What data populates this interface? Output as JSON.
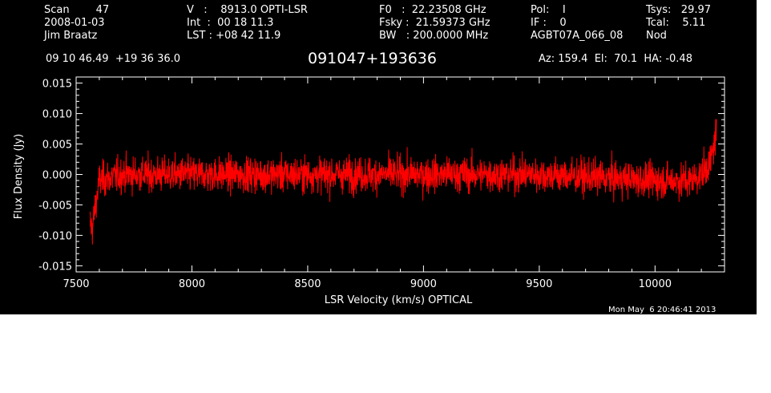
{
  "header": {
    "col1": [
      "Scan        47",
      "2008-01-03",
      "Jim Braatz"
    ],
    "col2": [
      "V   :    8913.0 OPTI-LSR",
      "Int  :  00 18 11.3",
      "LST : +08 42 11.9"
    ],
    "col3": [
      "F0   :  22.23508 GHz",
      "Fsky :  21.59373 GHz",
      "BW   : 200.0000 MHz"
    ],
    "col4": [
      "Pol:    I",
      "IF :    0",
      "AGBT07A_066_08"
    ],
    "col5": [
      "Tsys:   29.97",
      "Tcal:    5.11",
      "Nod"
    ],
    "coords": "09 10 46.49  +19 36 36.0",
    "source": "091047+193636",
    "pointing": "Az: 159.4  El:  70.1  HA: -0.48",
    "timestamp": "Mon May  6 20:46:41 2013"
  },
  "chart_data": {
    "type": "line",
    "xlabel": "LSR Velocity (km/s) OPTICAL",
    "ylabel": "Flux Density (Jy)",
    "xlim": [
      7500,
      10300
    ],
    "ylim": [
      -0.016,
      0.016
    ],
    "x_ticks": [
      7500,
      8000,
      8500,
      9000,
      9500,
      10000
    ],
    "x_tick_labels": [
      "7500",
      "8000",
      "8500",
      "9000",
      "9500",
      "10000"
    ],
    "y_ticks": [
      -0.015,
      -0.01,
      -0.005,
      0.0,
      0.005,
      0.01,
      0.015
    ],
    "y_tick_labels": [
      "-0.015",
      "-0.010",
      "-0.005",
      "0.000",
      "0.005",
      "0.010",
      "0.015"
    ],
    "series": [
      {
        "color": "#ff0000",
        "x_range": [
          7560,
          10265
        ],
        "baseline": [
          [
            7560,
            -0.008
          ],
          [
            7570,
            -0.009
          ],
          [
            7580,
            -0.006
          ],
          [
            7600,
            -0.001
          ],
          [
            7700,
            0.0
          ],
          [
            8000,
            0.0
          ],
          [
            9000,
            0.0
          ],
          [
            9500,
            0.0
          ],
          [
            10000,
            -0.001
          ],
          [
            10150,
            -0.001
          ],
          [
            10200,
            0.0
          ],
          [
            10240,
            0.002
          ],
          [
            10255,
            0.005
          ],
          [
            10265,
            0.007
          ]
        ],
        "noise_rms": 0.0028,
        "max": 0.0105,
        "min": -0.0115
      }
    ]
  },
  "colors": {
    "background": "#000000",
    "trace": "#ff0000",
    "axes": "#ffffff"
  }
}
